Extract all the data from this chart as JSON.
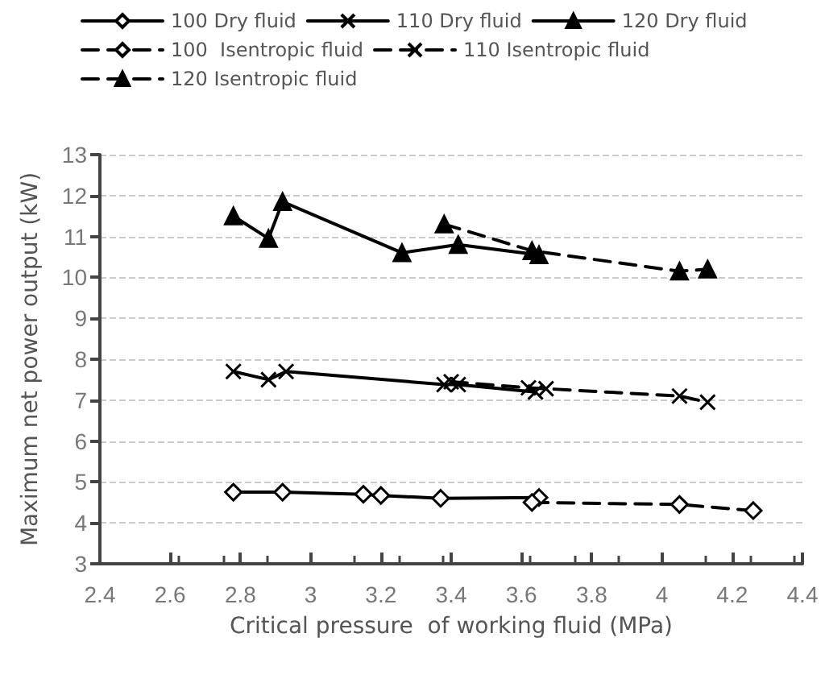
{
  "chart_data": {
    "type": "line",
    "xlabel": "Critical pressure  of working fluid (MPa)",
    "ylabel": "Maximum net power output (kW)",
    "xlim": [
      2.4,
      4.4
    ],
    "xticks": [
      2.4,
      2.6,
      2.8,
      3,
      3.2,
      3.4,
      3.6,
      3.8,
      4,
      4.2,
      4.4
    ],
    "ylim": [
      3,
      13
    ],
    "yticks": [
      3,
      4,
      5,
      6,
      7,
      8,
      9,
      10,
      11,
      12,
      13
    ],
    "grid": "y",
    "legend": "top",
    "series": [
      {
        "name": "100 Dry fluid",
        "color": "#000000",
        "marker": "diamond",
        "line_style": "solid",
        "x": [
          2.78,
          2.92,
          3.15,
          3.2,
          3.37,
          3.65
        ],
        "values": [
          4.75,
          4.75,
          4.7,
          4.67,
          4.6,
          4.62
        ]
      },
      {
        "name": "110 Dry fluid",
        "color": "#000000",
        "marker": "cross",
        "line_style": "solid",
        "x": [
          2.78,
          2.88,
          2.93,
          3.38,
          3.42,
          3.64
        ],
        "values": [
          7.7,
          7.5,
          7.7,
          7.38,
          7.38,
          7.2
        ]
      },
      {
        "name": "120 Dry fluid",
        "color": "#000000",
        "marker": "triangle",
        "line_style": "solid",
        "x": [
          2.78,
          2.88,
          2.92,
          3.26,
          3.42,
          3.65
        ],
        "values": [
          11.5,
          10.95,
          11.85,
          10.6,
          10.8,
          10.55
        ]
      },
      {
        "name": "100  Isentropic fluid",
        "color": "#000000",
        "marker": "diamond",
        "line_style": "dashed",
        "x": [
          3.63,
          4.05,
          4.26
        ],
        "values": [
          4.5,
          4.45,
          4.3
        ]
      },
      {
        "name": "110 Isentropic fluid",
        "color": "#000000",
        "marker": "cross",
        "line_style": "dashed",
        "x": [
          3.4,
          3.62,
          3.67,
          4.05,
          4.13
        ],
        "values": [
          7.45,
          7.3,
          7.28,
          7.1,
          6.95
        ]
      },
      {
        "name": "120 Isentropic fluid",
        "color": "#000000",
        "marker": "triangle",
        "line_style": "dashed",
        "x": [
          3.38,
          3.63,
          4.05,
          4.13
        ],
        "values": [
          11.3,
          10.65,
          10.15,
          10.2
        ]
      }
    ]
  }
}
